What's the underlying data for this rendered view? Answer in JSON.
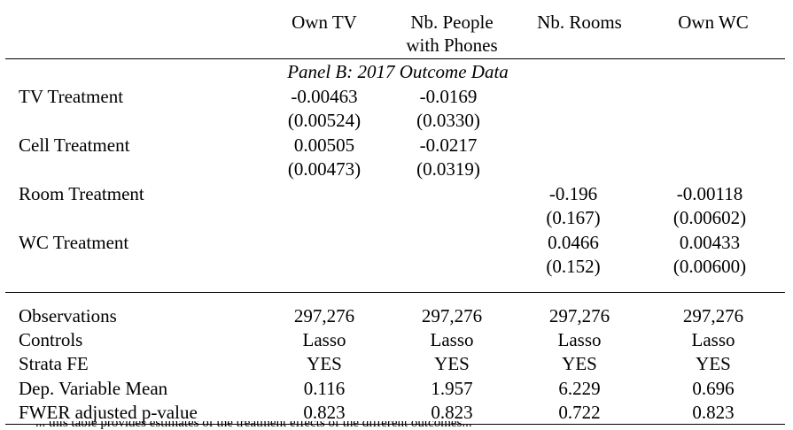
{
  "columns": [
    {
      "label_line1": "Own TV",
      "label_line2": ""
    },
    {
      "label_line1": "Nb. People",
      "label_line2": "with Phones"
    },
    {
      "label_line1": "Nb. Rooms",
      "label_line2": ""
    },
    {
      "label_line1": "Own WC",
      "label_line2": ""
    }
  ],
  "panel_title": "Panel B:  2017 Outcome Data",
  "rows": [
    {
      "label": "TV Treatment",
      "coef": [
        "-0.00463",
        "-0.0169",
        "",
        ""
      ],
      "se": [
        "(0.00524)",
        "(0.0330)",
        "",
        ""
      ]
    },
    {
      "label": "Cell Treatment",
      "coef": [
        "0.00505",
        "-0.0217",
        "",
        ""
      ],
      "se": [
        "(0.00473)",
        "(0.0319)",
        "",
        ""
      ]
    },
    {
      "label": "Room Treatment",
      "coef": [
        "",
        "",
        "-0.196",
        "-0.00118"
      ],
      "se": [
        "",
        "",
        "(0.167)",
        "(0.00602)"
      ]
    },
    {
      "label": "WC Treatment",
      "coef": [
        "",
        "",
        "0.0466",
        "0.00433"
      ],
      "se": [
        "",
        "",
        "(0.152)",
        "(0.00600)"
      ]
    }
  ],
  "stats": [
    {
      "label": "Observations",
      "values": [
        "297,276",
        "297,276",
        "297,276",
        "297,276"
      ]
    },
    {
      "label": "Controls",
      "values": [
        "Lasso",
        "Lasso",
        "Lasso",
        "Lasso"
      ]
    },
    {
      "label": "Strata FE",
      "values": [
        "YES",
        "YES",
        "YES",
        "YES"
      ]
    },
    {
      "label": "Dep. Variable Mean",
      "values": [
        "0.116",
        "1.957",
        "6.229",
        "0.696"
      ]
    },
    {
      "label": "FWER adjusted p-value",
      "values": [
        "0.823",
        "0.823",
        "0.722",
        "0.823"
      ]
    }
  ],
  "footnote_partial": "... this table provides estimates of the treatment effects of the different outcomes..."
}
